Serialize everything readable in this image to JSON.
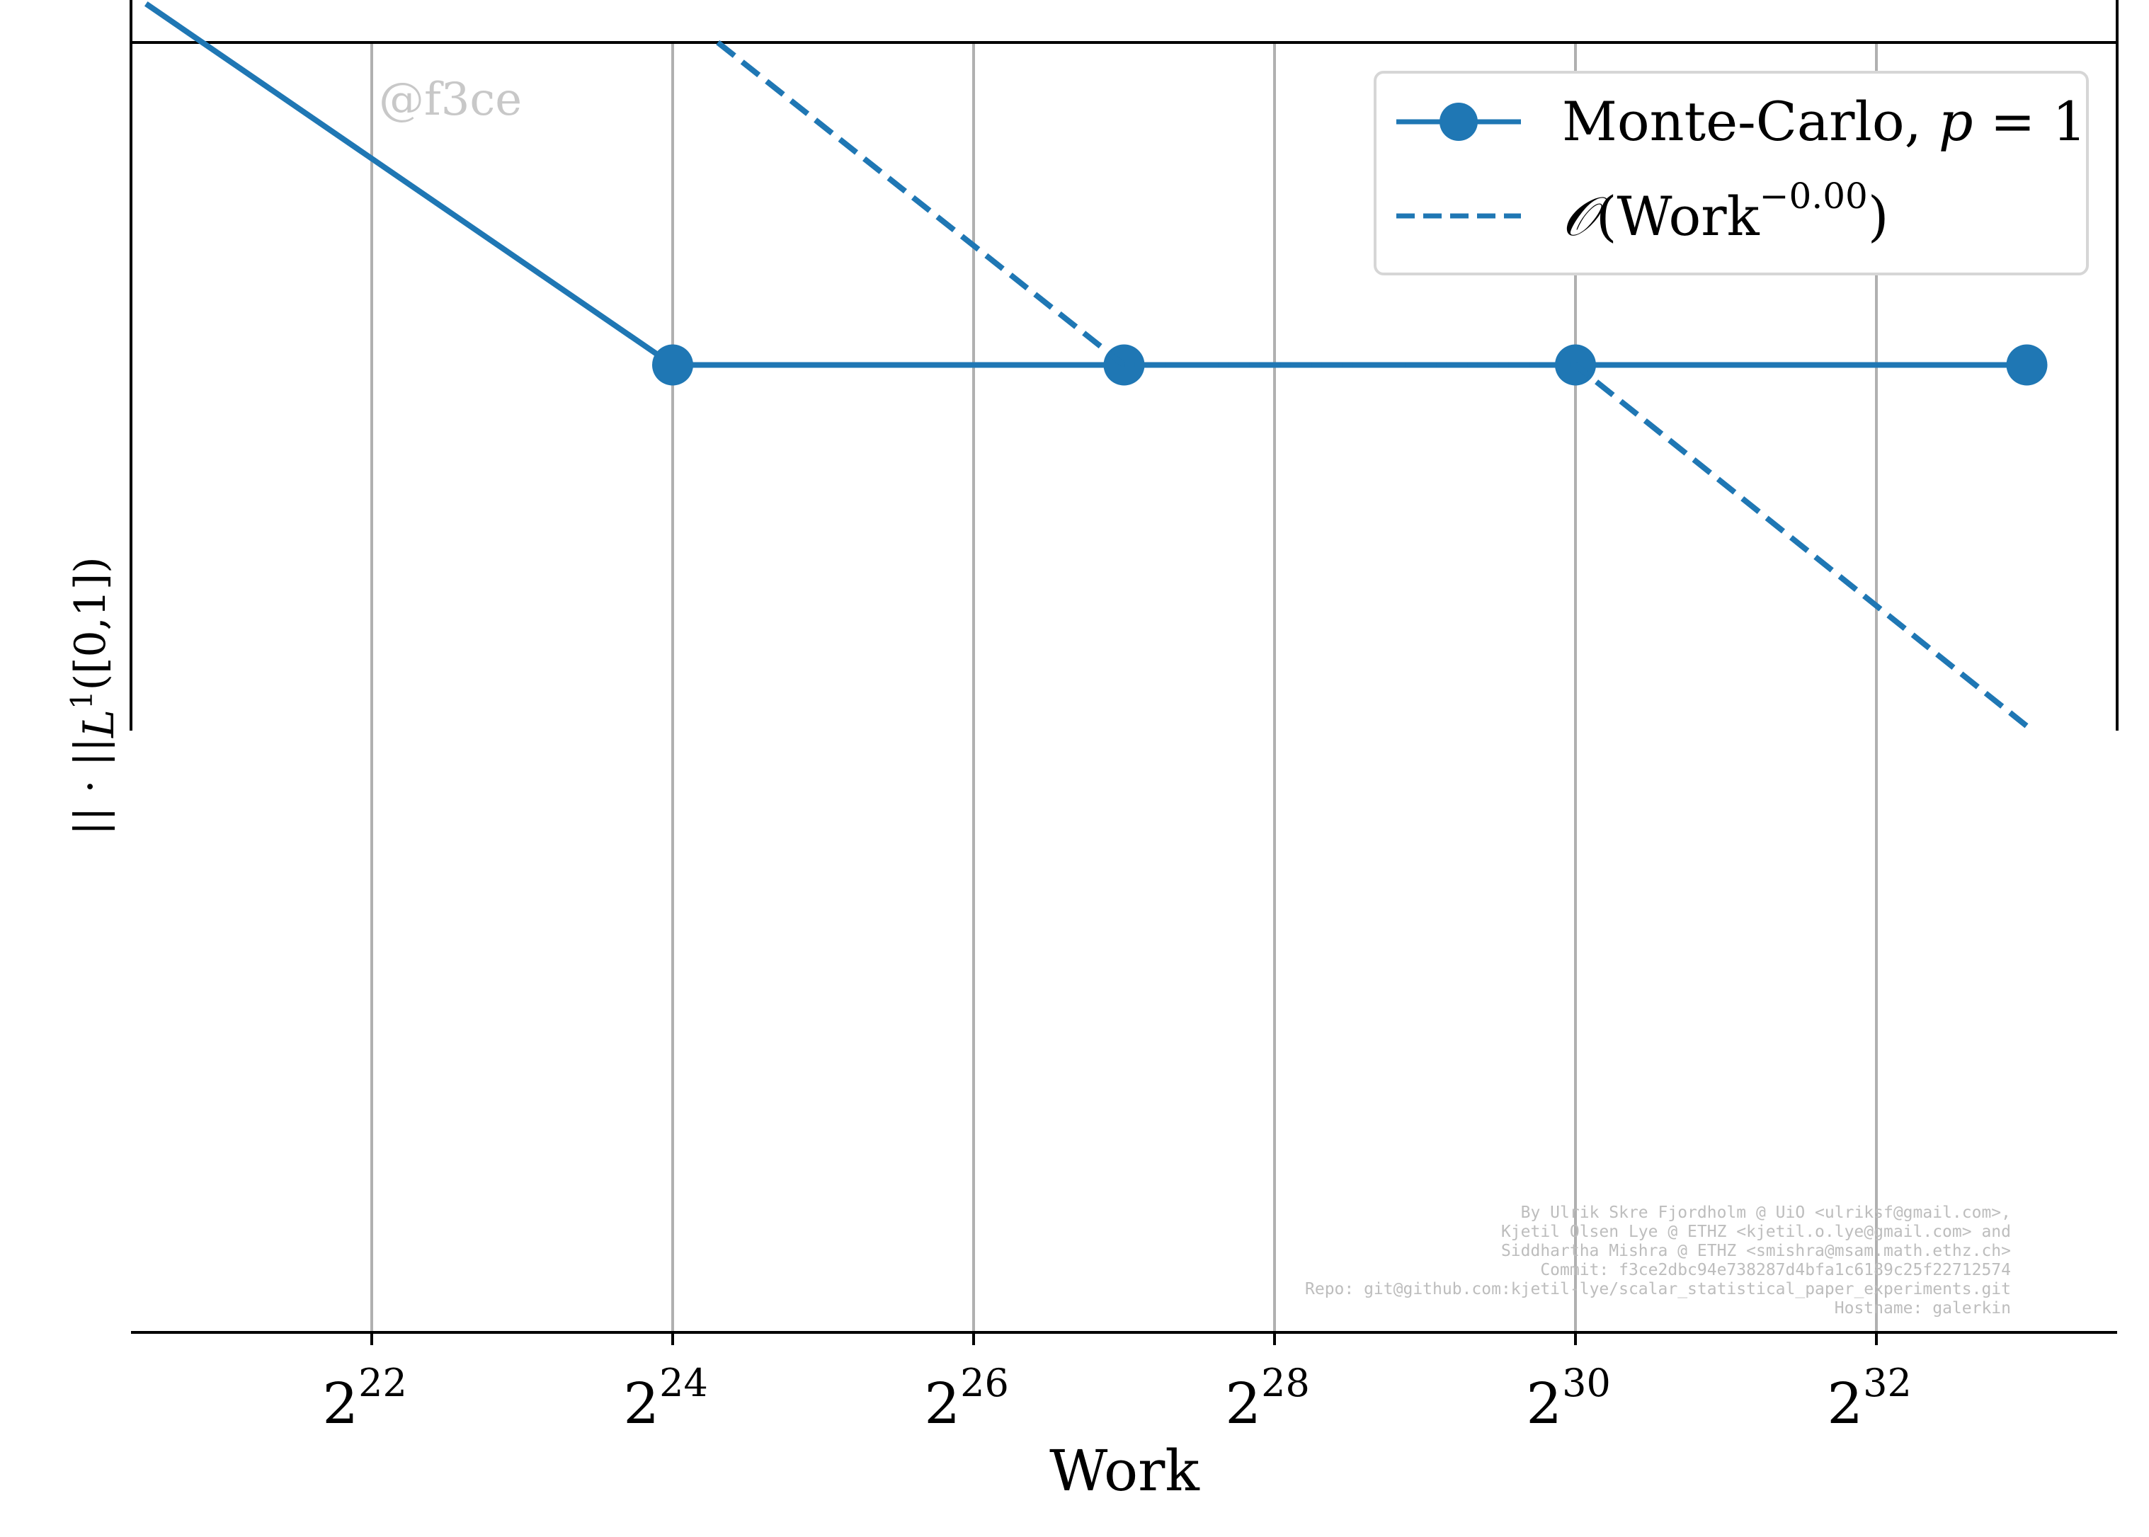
{
  "watermark": "@f3ce",
  "credits": [
    "By Ulrik Skre Fjordholm @ UiO <ulriksf@gmail.com>,",
    "Kjetil Olsen Lye @ ETHZ <kjetil.o.lye@gmail.com> and",
    "Siddhartha Mishra @ ETHZ <smishra@msam.math.ethz.ch>",
    "Commit: f3ce2dbc94e738287d4bfa1c6189c25f22712574",
    "Repo: git@github.com:kjetil-lye/scalar_statistical_paper_experiments.git",
    "Hostname: galerkin"
  ],
  "colors": {
    "series": "#1f77b4",
    "grid": "#b0b0b0",
    "axis": "#000000",
    "watermark": "#c8c8c8",
    "credits": "#bdbdbd"
  },
  "chart_data": {
    "type": "line",
    "title": "",
    "xlabel": "Work",
    "ylabel": "||·||_{L^1([0,1])}",
    "ylabel_parts": {
      "main": "|| · ||",
      "sub": "L",
      "sup": "1",
      "tail": "([0,1])"
    },
    "x_scale": "log2",
    "grid": "vertical",
    "legend_position": "top-right",
    "x_ticks": [
      {
        "base": "2",
        "exp": "22",
        "value": 4194304
      },
      {
        "base": "2",
        "exp": "24",
        "value": 16777216
      },
      {
        "base": "2",
        "exp": "26",
        "value": 67108864
      },
      {
        "base": "2",
        "exp": "28",
        "value": 268435456
      },
      {
        "base": "2",
        "exp": "30",
        "value": 1073741824
      },
      {
        "base": "2",
        "exp": "32",
        "value": 4294967296
      }
    ],
    "xlim_log2": [
      20.4,
      33.6
    ],
    "ylim_norm": [
      0,
      1
    ],
    "series": [
      {
        "name": "Monte-Carlo, p = 1",
        "legend": {
          "text": "Monte-Carlo, ",
          "var": "p",
          "rest": " = 1"
        },
        "style": "solid",
        "marker": "circle",
        "points_log2": [
          [
            20.5,
            1.03
          ],
          [
            24,
            0.75
          ],
          [
            27,
            0.75
          ],
          [
            30,
            0.75
          ],
          [
            33,
            0.75
          ]
        ]
      },
      {
        "name": "O(Work^-0.00)",
        "legend": {
          "symbol": "𝒪",
          "text": "(Work",
          "sup": "−0.00",
          "rest": ")"
        },
        "style": "dashed",
        "marker": "none",
        "points_log2": [
          [
            24.3,
            1.0
          ],
          [
            27,
            0.75
          ],
          [
            30,
            0.75
          ],
          [
            33,
            0.47
          ]
        ]
      }
    ]
  }
}
